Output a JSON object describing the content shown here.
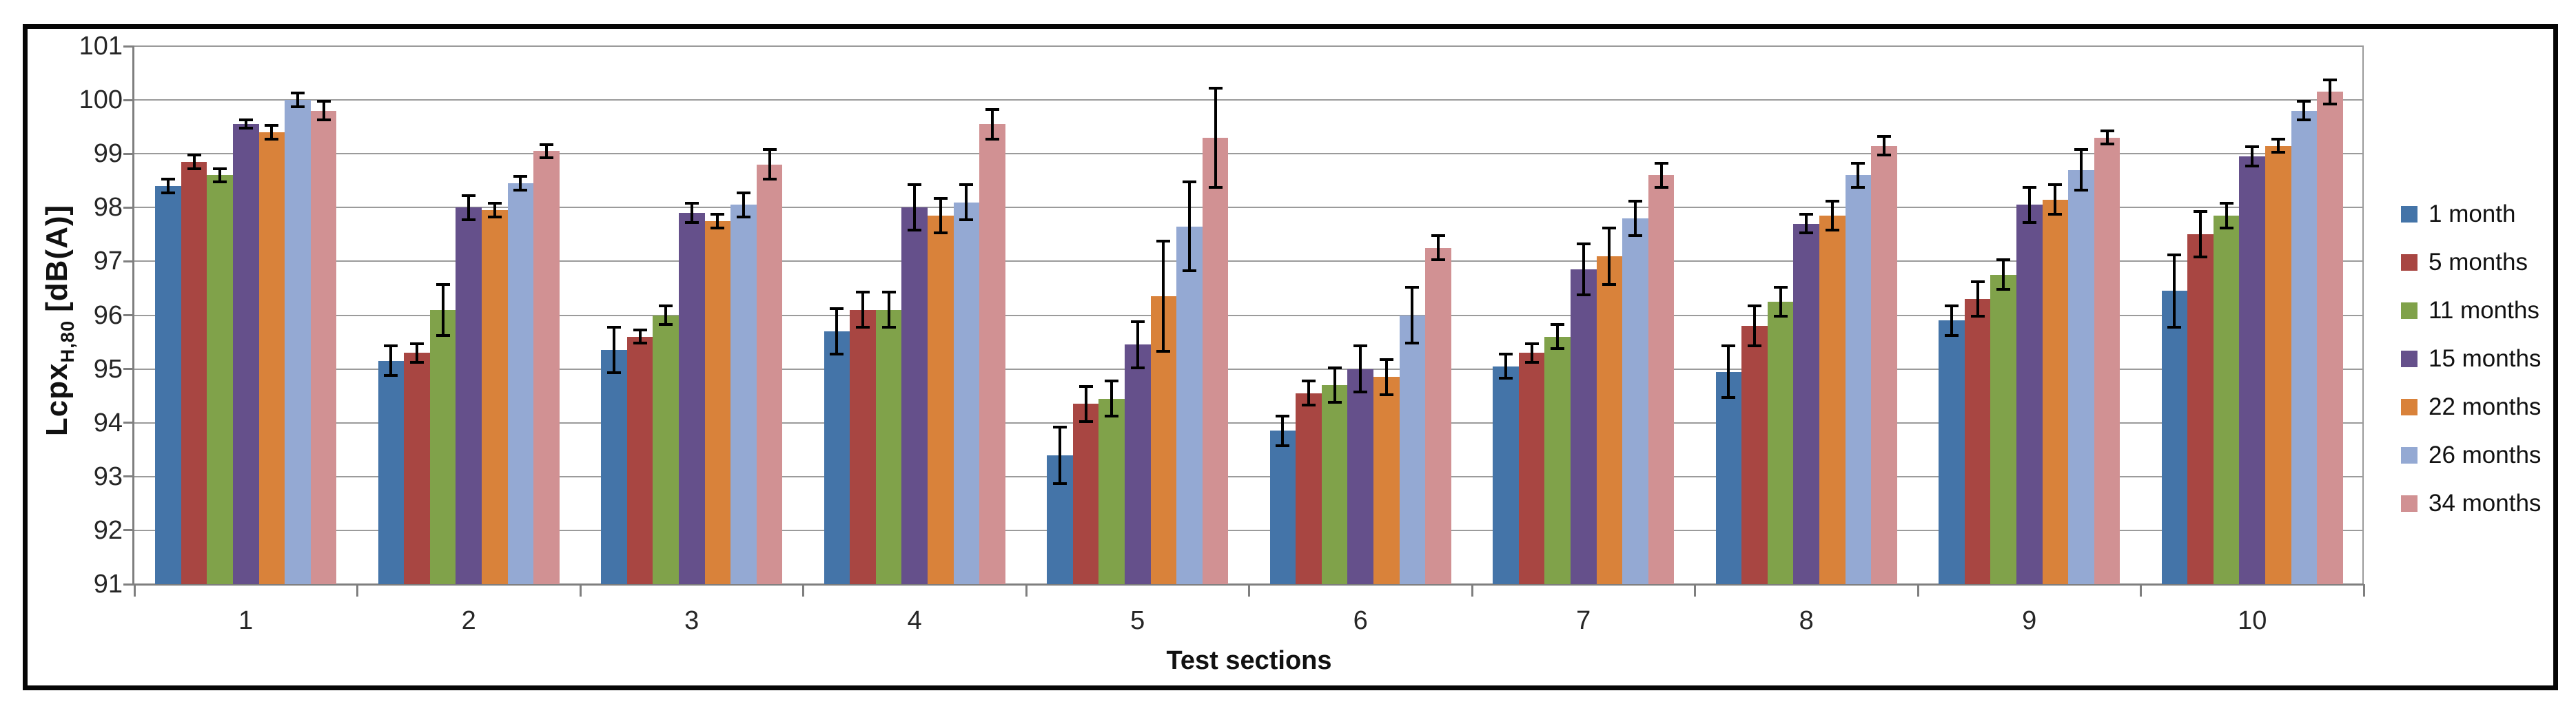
{
  "colors": {
    "frame": "#060606",
    "gridline": "#9b9b9b",
    "axis": "#7f7f7f",
    "error_bar": "#000000",
    "text": "#1f1f1f"
  },
  "chart_data": {
    "type": "bar",
    "title": "",
    "xlabel": "Test sections",
    "ylabel": {
      "main": "Lcpx",
      "sub": "H,80",
      "unit": "[dB(A)]"
    },
    "y_min": 91,
    "y_max": 101,
    "y_step": 1,
    "grid": true,
    "legend_position": "right",
    "error_bars": true,
    "categories": [
      "1",
      "2",
      "3",
      "4",
      "5",
      "6",
      "7",
      "8",
      "9",
      "10"
    ],
    "y_tick_labels": [
      "101",
      "100",
      "99",
      "98",
      "97",
      "96",
      "95",
      "94",
      "93",
      "92",
      "91"
    ],
    "series": [
      {
        "name": "1 month",
        "color": "#4474A8",
        "values": [
          98.4,
          95.15,
          95.35,
          95.7,
          93.4,
          93.85,
          95.05,
          94.95,
          95.9,
          96.45
        ],
        "errors": [
          0.15,
          0.3,
          0.45,
          0.45,
          0.55,
          0.3,
          0.25,
          0.5,
          0.3,
          0.7
        ]
      },
      {
        "name": "5 months",
        "color": "#A84642",
        "values": [
          98.85,
          95.3,
          95.6,
          96.1,
          94.35,
          94.55,
          95.3,
          95.8,
          96.3,
          97.5
        ],
        "errors": [
          0.15,
          0.2,
          0.15,
          0.35,
          0.35,
          0.25,
          0.2,
          0.4,
          0.35,
          0.45
        ]
      },
      {
        "name": "11 months",
        "color": "#80A24A",
        "values": [
          98.6,
          96.1,
          96.0,
          96.1,
          94.45,
          94.7,
          95.6,
          96.25,
          96.75,
          97.85
        ],
        "errors": [
          0.15,
          0.5,
          0.2,
          0.35,
          0.35,
          0.35,
          0.25,
          0.3,
          0.3,
          0.25
        ]
      },
      {
        "name": "15 months",
        "color": "#65508B",
        "values": [
          99.55,
          98.0,
          97.9,
          98.0,
          95.45,
          95.0,
          96.85,
          97.7,
          98.05,
          98.95
        ],
        "errors": [
          0.1,
          0.25,
          0.2,
          0.45,
          0.45,
          0.45,
          0.5,
          0.2,
          0.35,
          0.2
        ]
      },
      {
        "name": "22 months",
        "color": "#D9823A",
        "values": [
          99.4,
          97.95,
          97.75,
          97.85,
          96.35,
          94.85,
          97.1,
          97.85,
          98.15,
          99.15
        ],
        "errors": [
          0.15,
          0.15,
          0.15,
          0.35,
          1.05,
          0.35,
          0.55,
          0.3,
          0.3,
          0.15
        ]
      },
      {
        "name": "26 months",
        "color": "#94A9D3",
        "values": [
          100.0,
          98.45,
          98.05,
          98.1,
          97.65,
          96.0,
          97.8,
          98.6,
          98.7,
          99.8
        ],
        "errors": [
          0.15,
          0.15,
          0.25,
          0.35,
          0.85,
          0.55,
          0.35,
          0.25,
          0.4,
          0.2
        ]
      },
      {
        "name": "34 months",
        "color": "#D19193",
        "values": [
          99.8,
          99.05,
          98.8,
          99.55,
          99.3,
          97.25,
          98.6,
          99.15,
          99.3,
          100.15
        ],
        "errors": [
          0.2,
          0.15,
          0.3,
          0.3,
          0.95,
          0.25,
          0.25,
          0.2,
          0.15,
          0.25
        ]
      }
    ]
  }
}
